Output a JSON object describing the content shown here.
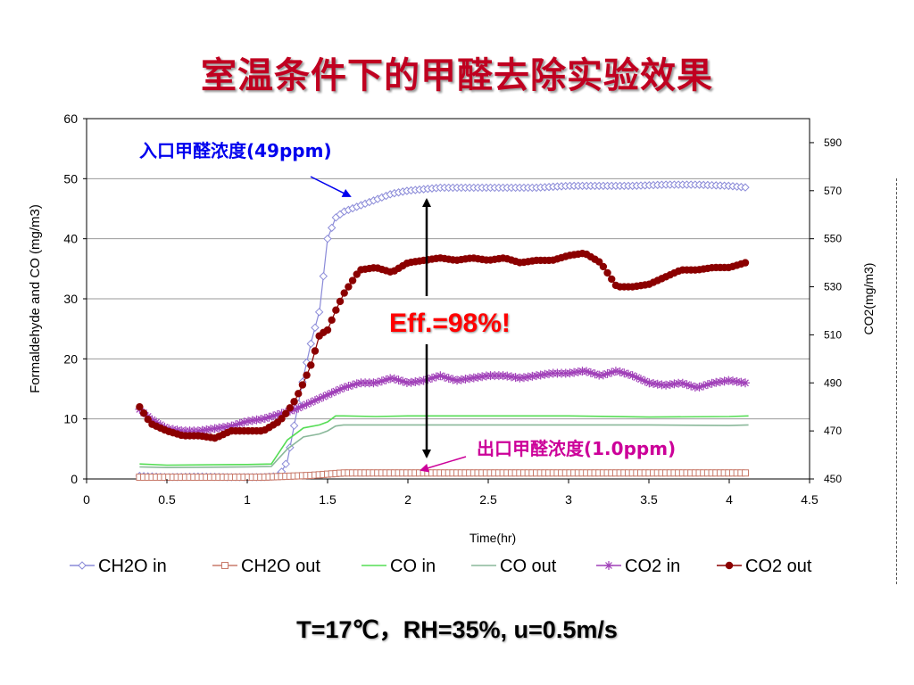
{
  "slide": {
    "title": "室温条件下的甲醛去除实验效果",
    "conditions": "T=17℃，RH=35%,  u=0.5m/s"
  },
  "annotations": {
    "inlet": "入口甲醛浓度(49ppm)",
    "efficiency": "Eff.=98%!",
    "outlet": "出口甲醛浓度(1.0ppm)"
  },
  "colors": {
    "title": "#c00020",
    "inlet_label": "#0000ee",
    "efficiency": "#ff0000",
    "outlet_label": "#cc0099",
    "ch2o_in": "#8a8ad8",
    "ch2o_out": "#c87a6a",
    "co_in": "#55dd55",
    "co_out": "#8ab89a",
    "co2_in": "#a040b8",
    "co2_out": "#8b0000"
  },
  "chart_data": {
    "type": "line",
    "xlabel": "Time(hr)",
    "ylabel": "Formaldehyde and CO (mg/m3)",
    "y2label": "CO2(mg/m3)",
    "xlim": [
      0,
      4.5
    ],
    "ylim": [
      0,
      60
    ],
    "y2lim": [
      450,
      600
    ],
    "xticks": [
      "0",
      "0.5",
      "1",
      "1.5",
      "2",
      "2.5",
      "3",
      "3.5",
      "4",
      "4.5"
    ],
    "yticks": [
      "0",
      "10",
      "20",
      "30",
      "40",
      "50",
      "60"
    ],
    "y2ticks": [
      "450",
      "470",
      "490",
      "510",
      "530",
      "550",
      "570",
      "590"
    ],
    "grid": true,
    "legend_position": "bottom",
    "series": [
      {
        "name": "CH2O in",
        "axis": "left",
        "marker": "diamond",
        "x": [
          0.33,
          0.5,
          0.7,
          0.9,
          1.1,
          1.2,
          1.25,
          1.3,
          1.35,
          1.4,
          1.45,
          1.5,
          1.55,
          1.6,
          1.7,
          1.8,
          1.9,
          2.0,
          2.2,
          2.4,
          2.6,
          2.8,
          3.0,
          3.2,
          3.4,
          3.6,
          3.8,
          4.0,
          4.12
        ],
        "y": [
          0.5,
          0.3,
          0.4,
          0.3,
          0.3,
          0.5,
          3,
          10,
          17,
          23,
          28,
          40,
          43.5,
          44.5,
          45.5,
          46.5,
          47.5,
          48,
          48.5,
          48.5,
          48.5,
          48.5,
          48.8,
          48.8,
          48.8,
          49,
          49,
          48.8,
          48.5
        ]
      },
      {
        "name": "CH2O out",
        "axis": "left",
        "marker": "square",
        "x": [
          0.33,
          0.5,
          0.8,
          1.1,
          1.2,
          1.3,
          1.4,
          1.5,
          1.6,
          1.7,
          1.8,
          2.0,
          2.5,
          3.0,
          3.5,
          4.0,
          4.12
        ],
        "y": [
          0.3,
          0.3,
          0.3,
          0.3,
          0.4,
          0.5,
          0.6,
          0.8,
          1.0,
          1.0,
          1.0,
          1.0,
          1.0,
          1.0,
          1.0,
          1.0,
          1.0
        ]
      },
      {
        "name": "CO in",
        "axis": "left",
        "marker": "none",
        "x": [
          0.33,
          0.5,
          1.0,
          1.15,
          1.25,
          1.35,
          1.45,
          1.5,
          1.55,
          1.6,
          1.8,
          2.0,
          2.5,
          3.0,
          3.5,
          4.0,
          4.12
        ],
        "y": [
          2.5,
          2.3,
          2.4,
          2.5,
          6.5,
          8.5,
          9,
          9.5,
          10.5,
          10.5,
          10.4,
          10.5,
          10.5,
          10.5,
          10.3,
          10.4,
          10.5
        ]
      },
      {
        "name": "CO out",
        "axis": "left",
        "marker": "none",
        "x": [
          0.33,
          0.5,
          1.0,
          1.15,
          1.25,
          1.35,
          1.45,
          1.5,
          1.55,
          1.6,
          1.8,
          2.0,
          2.5,
          3.0,
          3.5,
          4.0,
          4.12
        ],
        "y": [
          2.0,
          1.9,
          2.0,
          2.1,
          5,
          7,
          7.5,
          8,
          8.8,
          9,
          9,
          9,
          9,
          9,
          9,
          8.9,
          9
        ]
      },
      {
        "name": "CO2 in",
        "axis": "right",
        "marker": "star",
        "x": [
          0.33,
          0.4,
          0.5,
          0.6,
          0.7,
          0.8,
          0.9,
          1.0,
          1.1,
          1.2,
          1.3,
          1.4,
          1.5,
          1.6,
          1.7,
          1.8,
          1.9,
          2.0,
          2.1,
          2.2,
          2.3,
          2.4,
          2.5,
          2.6,
          2.7,
          2.8,
          2.9,
          3.0,
          3.1,
          3.2,
          3.3,
          3.4,
          3.5,
          3.6,
          3.7,
          3.8,
          3.9,
          4.0,
          4.1
        ],
        "y": [
          479,
          475,
          471,
          470,
          470,
          471,
          472,
          474,
          475,
          477,
          479,
          482,
          485,
          488,
          490,
          490,
          492,
          490,
          491,
          493,
          491,
          492,
          493,
          493,
          492,
          493,
          494,
          494,
          495,
          493,
          495,
          493,
          490,
          489,
          490,
          488,
          490,
          491,
          490
        ]
      },
      {
        "name": "CO2 out",
        "axis": "right",
        "marker": "circle",
        "x": [
          0.33,
          0.4,
          0.5,
          0.6,
          0.7,
          0.8,
          0.9,
          1.0,
          1.1,
          1.2,
          1.25,
          1.3,
          1.35,
          1.4,
          1.45,
          1.5,
          1.55,
          1.6,
          1.7,
          1.8,
          1.9,
          2.0,
          2.1,
          2.2,
          2.3,
          2.4,
          2.5,
          2.6,
          2.7,
          2.8,
          2.9,
          3.0,
          3.1,
          3.2,
          3.3,
          3.4,
          3.5,
          3.6,
          3.7,
          3.8,
          3.9,
          4.0,
          4.1
        ],
        "y": [
          480,
          473,
          470,
          468,
          468,
          467,
          470,
          470,
          470,
          474,
          478,
          483,
          490,
          498,
          510,
          512,
          520,
          527,
          537,
          538,
          536,
          540,
          541,
          542,
          541,
          542,
          541,
          542,
          540,
          541,
          541,
          543,
          544,
          540,
          530,
          530,
          531,
          534,
          537,
          537,
          538,
          538,
          540
        ]
      }
    ]
  }
}
